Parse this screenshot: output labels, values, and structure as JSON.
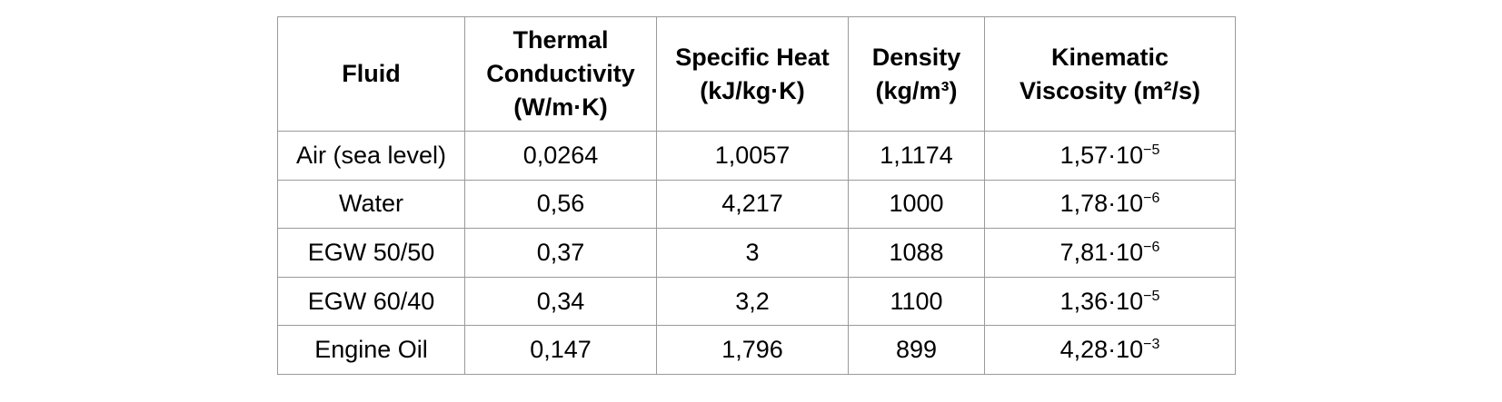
{
  "table": {
    "headers": [
      {
        "key": "fluid",
        "lines": [
          "Fluid"
        ]
      },
      {
        "key": "thermal-conductivity",
        "lines": [
          "Thermal",
          "Conductivity",
          "(W/m·K)"
        ]
      },
      {
        "key": "specific-heat",
        "lines": [
          "Specific Heat",
          "(kJ/kg·K)"
        ]
      },
      {
        "key": "density",
        "lines": [
          "Density",
          "(kg/m³)"
        ]
      },
      {
        "key": "kinematic-viscosity",
        "lines": [
          "Kinematic",
          "Viscosity (m²/s)"
        ]
      }
    ],
    "rows": [
      {
        "fluid": "Air (sea level)",
        "thermal_conductivity": "0,0264",
        "specific_heat": "1,0057",
        "density": "1,1174",
        "kinematic_viscosity": {
          "mantissa": "1,57·10",
          "exponent": "−5"
        }
      },
      {
        "fluid": "Water",
        "thermal_conductivity": "0,56",
        "specific_heat": "4,217",
        "density": "1000",
        "kinematic_viscosity": {
          "mantissa": "1,78·10",
          "exponent": "−6"
        }
      },
      {
        "fluid": "EGW 50/50",
        "thermal_conductivity": "0,37",
        "specific_heat": "3",
        "density": "1088",
        "kinematic_viscosity": {
          "mantissa": "7,81·10",
          "exponent": "−6"
        }
      },
      {
        "fluid": "EGW 60/40",
        "thermal_conductivity": "0,34",
        "specific_heat": "3,2",
        "density": "1100",
        "kinematic_viscosity": {
          "mantissa": "1,36·10",
          "exponent": "−5"
        }
      },
      {
        "fluid": "Engine Oil",
        "thermal_conductivity": "0,147",
        "specific_heat": "1,796",
        "density": "899",
        "kinematic_viscosity": {
          "mantissa": "4,28·10",
          "exponent": "−3"
        }
      }
    ]
  },
  "colors": {
    "border": "#9a9a9a",
    "text": "#000000",
    "background": "#ffffff"
  }
}
